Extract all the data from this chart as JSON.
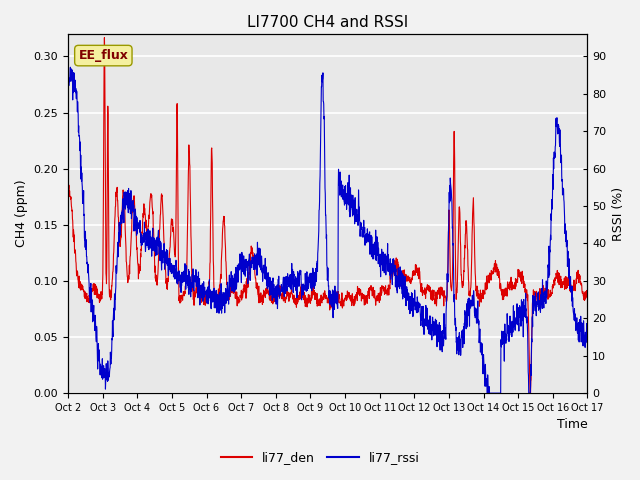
{
  "title": "LI7700 CH4 and RSSI",
  "xlabel": "Time",
  "ylabel_left": "CH4 (ppm)",
  "ylabel_right": "RSSI (%)",
  "annotation_text": "EE_flux",
  "left_ylim": [
    0.0,
    0.32
  ],
  "left_yticks": [
    0.0,
    0.05,
    0.1,
    0.15,
    0.2,
    0.25,
    0.3
  ],
  "right_ylim": [
    0,
    96
  ],
  "right_yticks": [
    0,
    10,
    20,
    30,
    40,
    50,
    60,
    70,
    80,
    90
  ],
  "xtick_labels": [
    "Oct 2",
    "Oct 3",
    "Oct 4",
    "Oct 5",
    "Oct 6",
    "Oct 7",
    "Oct 8",
    "Oct 9",
    "Oct 10",
    "Oct 11",
    "Oct 12",
    "Oct 13",
    "Oct 14",
    "Oct 15",
    "Oct 16",
    "Oct 17"
  ],
  "color_red": "#dd0000",
  "color_blue": "#0000cc",
  "legend_labels": [
    "li77_den",
    "li77_rssi"
  ],
  "plot_bg_color": "#e8e8e8",
  "fig_bg_color": "#f2f2f2",
  "grid_color": "#ffffff",
  "title_fontsize": 11,
  "axis_fontsize": 9,
  "tick_fontsize": 8,
  "legend_fontsize": 9
}
